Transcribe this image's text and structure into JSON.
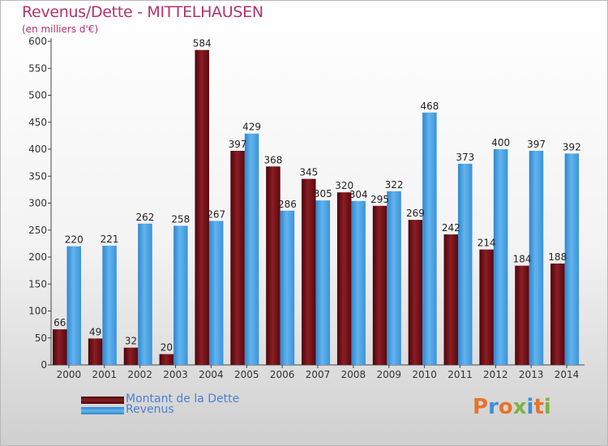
{
  "title": "Revenus/Dette - MITTELHAUSEN",
  "subtitle": "(en milliers d'€)",
  "legend": {
    "debt_label": "Montant de la Dette",
    "revenue_label": "Revenus"
  },
  "logo_text": "Proxiti",
  "colors": {
    "debt": "#6b0a10",
    "revenue": "#4ea3e3",
    "title": "#b0336e",
    "legend_text": "#4a7fd6"
  },
  "chart_data": {
    "type": "bar",
    "title": "Revenus/Dette - MITTELHAUSEN",
    "ylabel": "(en milliers d'€)",
    "xlabel": "",
    "ylim": [
      0,
      600
    ],
    "yticks": [
      0,
      50,
      100,
      150,
      200,
      250,
      300,
      350,
      400,
      450,
      500,
      550,
      600
    ],
    "categories": [
      "2000",
      "2001",
      "2002",
      "2003",
      "2004",
      "2005",
      "2006",
      "2007",
      "2008",
      "2009",
      "2010",
      "2011",
      "2012",
      "2013",
      "2014"
    ],
    "series": [
      {
        "name": "Montant de la Dette",
        "values": [
          66,
          49,
          32,
          20,
          584,
          397,
          368,
          345,
          320,
          295,
          269,
          242,
          214,
          184,
          188
        ]
      },
      {
        "name": "Revenus",
        "values": [
          220,
          221,
          262,
          258,
          267,
          429,
          286,
          305,
          304,
          322,
          468,
          373,
          400,
          397,
          392
        ]
      }
    ],
    "grid": false,
    "legend_position": "bottom-left"
  }
}
